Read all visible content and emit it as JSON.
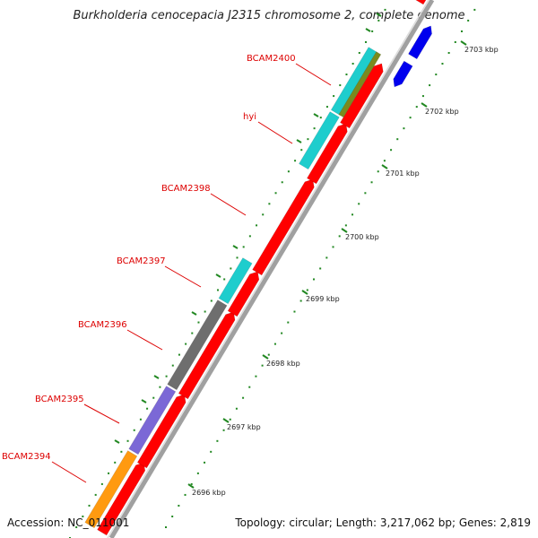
{
  "title": "Burkholderia cenocepacia J2315 chromosome 2, complete genome",
  "footer": {
    "accession": "Accession: NC_011001",
    "summary": "Topology: circular; Length: 3,217,062 bp; Genes: 2,819"
  },
  "colors": {
    "cds_forward": "#ff0000",
    "cds_reverse_teal": "#1ecdcd",
    "cds_reverse_olive": "#7a8a1e",
    "cds_reverse_gray": "#6e6e6e",
    "cds_reverse_purple": "#7b68d6",
    "cds_reverse_orange": "#ff9a10",
    "cds_other_strand": "#0000ee",
    "backbone": "#a0a0a0",
    "ticks": "#228822",
    "label": "#dd0000"
  },
  "scale_ticks": [
    {
      "label": "2696 kbp"
    },
    {
      "label": "2697 kbp"
    },
    {
      "label": "2698 kbp"
    },
    {
      "label": "2699 kbp"
    },
    {
      "label": "2700 kbp"
    },
    {
      "label": "2701 kbp"
    },
    {
      "label": "2702 kbp"
    },
    {
      "label": "2703 kbp"
    }
  ],
  "gene_labels": [
    {
      "name": "BCAM2394"
    },
    {
      "name": "BCAM2395"
    },
    {
      "name": "BCAM2396"
    },
    {
      "name": "BCAM2397"
    },
    {
      "name": "BCAM2398"
    },
    {
      "name": "hyi"
    },
    {
      "name": "BCAM2400"
    }
  ]
}
